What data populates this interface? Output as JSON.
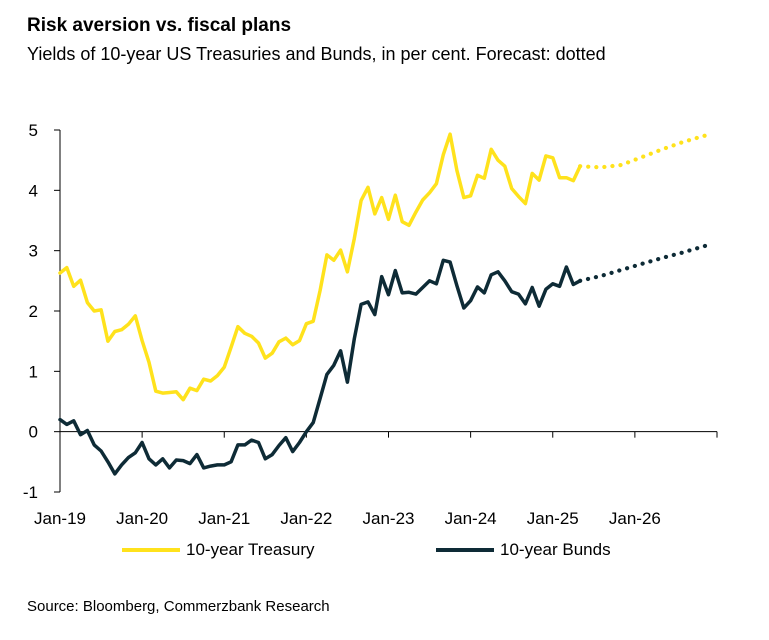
{
  "header": {
    "title": "Risk aversion vs. fiscal plans",
    "subtitle": "Yields of 10-year US Treasuries and Bunds, in per cent. Forecast: dotted"
  },
  "footer": {
    "source": "Source: Bloomberg, Commerzbank Research"
  },
  "colors": {
    "treasury": "#FFE21C",
    "bunds": "#0E2B36",
    "axis": "#000000"
  },
  "chart_data": {
    "type": "line",
    "title": "Risk aversion vs. fiscal plans",
    "subtitle": "Yields of 10-year US Treasuries and Bunds, in per cent. Forecast: dotted",
    "x_ticks": [
      "Jan-19",
      "Jan-20",
      "Jan-21",
      "Jan-22",
      "Jan-23",
      "Jan-24",
      "Jan-25",
      "Jan-26"
    ],
    "x_tick_dates": [
      "2019-01",
      "2020-01",
      "2021-01",
      "2022-01",
      "2023-01",
      "2024-01",
      "2025-01",
      "2026-01"
    ],
    "xlim": [
      "2019-01",
      "2026-12"
    ],
    "ylim": [
      -1,
      5
    ],
    "y_ticks": [
      -1,
      0,
      1,
      2,
      3,
      4,
      5
    ],
    "grid": false,
    "legend_position": "bottom",
    "series": [
      {
        "name": "10-year Treasury",
        "style": "solid",
        "x": [
          "2019-01",
          "2019-02",
          "2019-03",
          "2019-04",
          "2019-05",
          "2019-06",
          "2019-07",
          "2019-08",
          "2019-09",
          "2019-10",
          "2019-11",
          "2019-12",
          "2020-01",
          "2020-02",
          "2020-03",
          "2020-04",
          "2020-05",
          "2020-06",
          "2020-07",
          "2020-08",
          "2020-09",
          "2020-10",
          "2020-11",
          "2020-12",
          "2021-01",
          "2021-02",
          "2021-03",
          "2021-04",
          "2021-05",
          "2021-06",
          "2021-07",
          "2021-08",
          "2021-09",
          "2021-10",
          "2021-11",
          "2021-12",
          "2022-01",
          "2022-02",
          "2022-03",
          "2022-04",
          "2022-05",
          "2022-06",
          "2022-07",
          "2022-08",
          "2022-09",
          "2022-10",
          "2022-11",
          "2022-12",
          "2023-01",
          "2023-02",
          "2023-03",
          "2023-04",
          "2023-05",
          "2023-06",
          "2023-07",
          "2023-08",
          "2023-09",
          "2023-10",
          "2023-11",
          "2023-12",
          "2024-01",
          "2024-02",
          "2024-03",
          "2024-04",
          "2024-05",
          "2024-06",
          "2024-07",
          "2024-08",
          "2024-09",
          "2024-10",
          "2024-11",
          "2024-12",
          "2025-01",
          "2025-02",
          "2025-03",
          "2025-04",
          "2025-05"
        ],
        "values": [
          2.63,
          2.72,
          2.41,
          2.51,
          2.14,
          2.0,
          2.02,
          1.5,
          1.66,
          1.69,
          1.78,
          1.92,
          1.51,
          1.15,
          0.67,
          0.64,
          0.65,
          0.66,
          0.53,
          0.72,
          0.68,
          0.87,
          0.84,
          0.93,
          1.07,
          1.4,
          1.74,
          1.63,
          1.58,
          1.47,
          1.22,
          1.3,
          1.49,
          1.55,
          1.44,
          1.51,
          1.79,
          1.83,
          2.34,
          2.93,
          2.84,
          3.01,
          2.65,
          3.2,
          3.83,
          4.05,
          3.61,
          3.88,
          3.52,
          3.92,
          3.48,
          3.42,
          3.64,
          3.84,
          3.96,
          4.11,
          4.59,
          4.93,
          4.33,
          3.88,
          3.91,
          4.25,
          4.2,
          4.68,
          4.5,
          4.4,
          4.03,
          3.9,
          3.78,
          4.28,
          4.17,
          4.57,
          4.54,
          4.21,
          4.21,
          4.16,
          4.4
        ]
      },
      {
        "name": "",
        "style": "dotted",
        "x": [
          "2025-05",
          "2025-08",
          "2025-11",
          "2026-02",
          "2026-05",
          "2026-08",
          "2026-11",
          "2026-12"
        ],
        "values": [
          4.4,
          4.38,
          4.42,
          4.55,
          4.68,
          4.8,
          4.9,
          4.92
        ]
      },
      {
        "name": "10-year Bunds",
        "style": "solid",
        "x": [
          "2019-01",
          "2019-02",
          "2019-03",
          "2019-04",
          "2019-05",
          "2019-06",
          "2019-07",
          "2019-08",
          "2019-09",
          "2019-10",
          "2019-11",
          "2019-12",
          "2020-01",
          "2020-02",
          "2020-03",
          "2020-04",
          "2020-05",
          "2020-06",
          "2020-07",
          "2020-08",
          "2020-09",
          "2020-10",
          "2020-11",
          "2020-12",
          "2021-01",
          "2021-02",
          "2021-03",
          "2021-04",
          "2021-05",
          "2021-06",
          "2021-07",
          "2021-08",
          "2021-09",
          "2021-10",
          "2021-11",
          "2021-12",
          "2022-01",
          "2022-02",
          "2022-03",
          "2022-04",
          "2022-05",
          "2022-06",
          "2022-07",
          "2022-08",
          "2022-09",
          "2022-10",
          "2022-11",
          "2022-12",
          "2023-01",
          "2023-02",
          "2023-03",
          "2023-04",
          "2023-05",
          "2023-06",
          "2023-07",
          "2023-08",
          "2023-09",
          "2023-10",
          "2023-11",
          "2023-12",
          "2024-01",
          "2024-02",
          "2024-03",
          "2024-04",
          "2024-05",
          "2024-06",
          "2024-07",
          "2024-08",
          "2024-09",
          "2024-10",
          "2024-11",
          "2024-12",
          "2025-01",
          "2025-02",
          "2025-03",
          "2025-04",
          "2025-05"
        ],
        "values": [
          0.2,
          0.12,
          0.18,
          -0.05,
          0.02,
          -0.22,
          -0.32,
          -0.5,
          -0.7,
          -0.55,
          -0.43,
          -0.35,
          -0.18,
          -0.45,
          -0.55,
          -0.45,
          -0.6,
          -0.47,
          -0.48,
          -0.53,
          -0.38,
          -0.6,
          -0.57,
          -0.55,
          -0.55,
          -0.5,
          -0.22,
          -0.22,
          -0.14,
          -0.18,
          -0.45,
          -0.38,
          -0.23,
          -0.1,
          -0.33,
          -0.18,
          0.0,
          0.15,
          0.55,
          0.95,
          1.1,
          1.34,
          0.82,
          1.54,
          2.11,
          2.15,
          1.94,
          2.57,
          2.27,
          2.67,
          2.3,
          2.31,
          2.28,
          2.39,
          2.5,
          2.45,
          2.84,
          2.81,
          2.42,
          2.05,
          2.17,
          2.4,
          2.3,
          2.6,
          2.65,
          2.5,
          2.32,
          2.28,
          2.12,
          2.39,
          2.08,
          2.36,
          2.45,
          2.41,
          2.73,
          2.44,
          2.5
        ]
      },
      {
        "name": "",
        "style": "dotted",
        "x": [
          "2025-05",
          "2025-08",
          "2025-11",
          "2026-02",
          "2026-05",
          "2026-08",
          "2026-11",
          "2026-12"
        ],
        "values": [
          2.5,
          2.58,
          2.68,
          2.78,
          2.88,
          2.97,
          3.07,
          3.1
        ]
      }
    ]
  }
}
